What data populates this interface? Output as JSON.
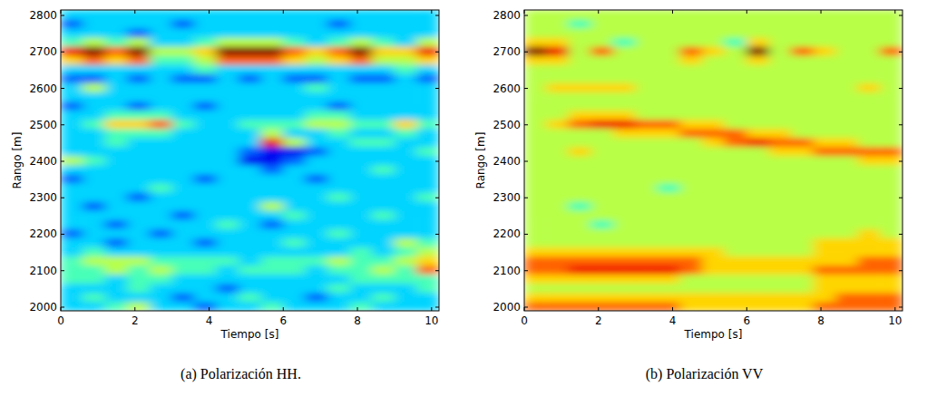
{
  "chart_data": [
    {
      "type": "heatmap",
      "caption": "(a) Polarización HH.",
      "xlabel": "Tiempo [s]",
      "ylabel": "Rango [m]",
      "xlim": [
        0,
        10.2
      ],
      "ylim": [
        1990,
        2815
      ],
      "xticks": [
        0,
        2,
        4,
        6,
        8,
        10
      ],
      "yticks": [
        2000,
        2100,
        2200,
        2300,
        2400,
        2500,
        2600,
        2700,
        2800
      ],
      "x_bins": [
        0,
        0.6,
        1.2,
        1.8,
        2.4,
        3,
        3.6,
        4.2,
        4.8,
        5.4,
        6,
        6.6,
        7.2,
        7.8,
        8.4,
        9,
        9.6,
        10.2
      ],
      "y_bins": [
        1990,
        2015,
        2040,
        2065,
        2090,
        2115,
        2140,
        2165,
        2190,
        2215,
        2240,
        2265,
        2290,
        2315,
        2340,
        2365,
        2390,
        2415,
        2440,
        2465,
        2490,
        2515,
        2540,
        2565,
        2590,
        2615,
        2640,
        2665,
        2690,
        2715,
        2740,
        2765,
        2790,
        2815
      ],
      "value_range": [
        0,
        9
      ],
      "cells": [
        [
          3,
          3,
          4,
          5,
          3,
          3,
          2,
          3,
          3,
          4,
          3,
          3,
          3,
          4,
          3,
          3,
          3
        ],
        [
          3,
          4,
          3,
          3,
          3,
          2,
          3,
          3,
          4,
          3,
          3,
          2,
          3,
          3,
          4,
          3,
          3
        ],
        [
          3,
          3,
          3,
          4,
          3,
          3,
          3,
          2,
          3,
          3,
          3,
          3,
          4,
          3,
          3,
          3,
          4
        ],
        [
          4,
          4,
          3,
          4,
          4,
          3,
          3,
          3,
          3,
          3,
          3,
          3,
          3,
          4,
          4,
          4,
          4
        ],
        [
          4,
          4,
          5,
          4,
          5,
          4,
          4,
          3,
          4,
          4,
          4,
          3,
          4,
          4,
          5,
          4,
          7
        ],
        [
          4,
          5,
          5,
          5,
          4,
          4,
          4,
          4,
          3,
          4,
          4,
          4,
          5,
          4,
          4,
          5,
          6
        ],
        [
          3,
          4,
          3,
          3,
          3,
          3,
          3,
          3,
          3,
          3,
          3,
          3,
          3,
          4,
          3,
          4,
          5
        ],
        [
          3,
          3,
          2,
          3,
          3,
          3,
          2,
          3,
          3,
          3,
          4,
          3,
          3,
          3,
          3,
          5,
          4
        ],
        [
          2,
          3,
          3,
          3,
          2,
          3,
          3,
          3,
          3,
          3,
          3,
          3,
          4,
          3,
          3,
          3,
          3
        ],
        [
          3,
          3,
          2,
          3,
          3,
          3,
          3,
          4,
          3,
          2,
          3,
          3,
          3,
          3,
          3,
          3,
          3
        ],
        [
          3,
          3,
          3,
          3,
          3,
          2,
          3,
          3,
          3,
          3,
          4,
          3,
          3,
          3,
          4,
          3,
          3
        ],
        [
          3,
          2,
          3,
          3,
          3,
          3,
          3,
          3,
          3,
          5,
          3,
          3,
          3,
          3,
          3,
          3,
          3
        ],
        [
          3,
          3,
          3,
          2,
          3,
          3,
          3,
          3,
          3,
          3,
          3,
          3,
          4,
          3,
          3,
          3,
          4
        ],
        [
          3,
          3,
          3,
          3,
          4,
          3,
          3,
          3,
          3,
          3,
          3,
          3,
          3,
          3,
          3,
          3,
          3
        ],
        [
          2,
          3,
          3,
          3,
          3,
          3,
          2,
          3,
          3,
          3,
          3,
          2,
          3,
          3,
          3,
          3,
          3
        ],
        [
          3,
          3,
          3,
          3,
          3,
          3,
          3,
          3,
          3,
          2,
          3,
          3,
          3,
          3,
          4,
          3,
          3
        ],
        [
          5,
          4,
          3,
          3,
          3,
          3,
          3,
          3,
          1,
          1,
          2,
          3,
          3,
          3,
          3,
          3,
          3
        ],
        [
          3,
          3,
          3,
          3,
          3,
          3,
          3,
          3,
          2,
          1,
          1,
          2,
          3,
          3,
          3,
          3,
          4
        ],
        [
          3,
          3,
          4,
          3,
          3,
          3,
          3,
          3,
          3,
          8,
          5,
          3,
          3,
          4,
          4,
          3,
          3
        ],
        [
          3,
          3,
          4,
          4,
          4,
          3,
          3,
          3,
          3,
          5,
          3,
          3,
          4,
          3,
          3,
          4,
          3
        ],
        [
          3,
          4,
          6,
          6,
          7,
          4,
          3,
          3,
          4,
          4,
          4,
          5,
          5,
          4,
          4,
          6,
          4
        ],
        [
          3,
          3,
          4,
          4,
          4,
          3,
          3,
          3,
          3,
          3,
          3,
          4,
          4,
          3,
          3,
          3,
          3
        ],
        [
          2,
          3,
          3,
          2,
          3,
          3,
          2,
          3,
          3,
          3,
          3,
          3,
          2,
          3,
          3,
          3,
          3
        ],
        [
          3,
          3,
          3,
          3,
          3,
          3,
          3,
          3,
          3,
          3,
          3,
          3,
          3,
          3,
          3,
          3,
          3
        ],
        [
          3,
          5,
          3,
          3,
          3,
          3,
          3,
          3,
          3,
          3,
          3,
          4,
          3,
          3,
          3,
          3,
          3
        ],
        [
          2,
          2,
          3,
          2,
          3,
          2,
          2,
          3,
          2,
          3,
          2,
          2,
          3,
          2,
          2,
          3,
          2
        ],
        [
          3,
          3,
          3,
          3,
          3,
          3,
          4,
          3,
          3,
          3,
          3,
          3,
          3,
          3,
          3,
          4,
          3
        ],
        [
          6,
          7,
          6,
          7,
          4,
          4,
          5,
          7,
          7,
          7,
          6,
          5,
          6,
          7,
          5,
          5,
          6
        ],
        [
          8,
          9,
          7,
          9,
          5,
          5,
          6,
          9,
          9,
          9,
          7,
          6,
          7,
          9,
          6,
          6,
          8
        ],
        [
          4,
          5,
          4,
          5,
          3,
          3,
          4,
          5,
          5,
          5,
          4,
          3,
          4,
          5,
          4,
          3,
          5
        ],
        [
          3,
          3,
          3,
          2,
          3,
          3,
          3,
          3,
          3,
          3,
          3,
          3,
          3,
          3,
          3,
          3,
          3
        ],
        [
          2,
          3,
          3,
          3,
          3,
          2,
          3,
          3,
          3,
          3,
          3,
          3,
          2,
          3,
          3,
          3,
          3
        ],
        [
          3,
          3,
          3,
          3,
          3,
          3,
          3,
          3,
          3,
          3,
          3,
          3,
          3,
          3,
          3,
          3,
          3
        ]
      ]
    },
    {
      "type": "heatmap",
      "caption": "(b) Polarización VV",
      "xlabel": "Tiempo [s]",
      "ylabel": "Rango [m]",
      "xlim": [
        0,
        10.2
      ],
      "ylim": [
        1990,
        2815
      ],
      "xticks": [
        0,
        2,
        4,
        6,
        8,
        10
      ],
      "yticks": [
        2000,
        2100,
        2200,
        2300,
        2400,
        2500,
        2600,
        2700,
        2800
      ],
      "x_bins": [
        0,
        0.6,
        1.2,
        1.8,
        2.4,
        3,
        3.6,
        4.2,
        4.8,
        5.4,
        6,
        6.6,
        7.2,
        7.8,
        8.4,
        9,
        9.6,
        10.2
      ],
      "y_bins": [
        1990,
        2015,
        2040,
        2065,
        2090,
        2115,
        2140,
        2165,
        2190,
        2215,
        2240,
        2265,
        2290,
        2315,
        2340,
        2365,
        2390,
        2415,
        2440,
        2465,
        2490,
        2515,
        2540,
        2565,
        2590,
        2615,
        2640,
        2665,
        2690,
        2715,
        2740,
        2765,
        2790,
        2815
      ],
      "value_range": [
        0,
        9
      ],
      "cells": [
        [
          7,
          7,
          7,
          7,
          7,
          7,
          7,
          6,
          6,
          6,
          6,
          6,
          6,
          7,
          7,
          7,
          7
        ],
        [
          6,
          6,
          6,
          6,
          6,
          6,
          6,
          6,
          6,
          6,
          6,
          6,
          6,
          6,
          7,
          7,
          7
        ],
        [
          5,
          5,
          5,
          5,
          5,
          5,
          5,
          5,
          5,
          5,
          5,
          5,
          5,
          6,
          6,
          6,
          6
        ],
        [
          6,
          6,
          6,
          6,
          6,
          6,
          6,
          5,
          5,
          5,
          5,
          5,
          5,
          6,
          6,
          6,
          6
        ],
        [
          7,
          7,
          8,
          8,
          8,
          8,
          8,
          7,
          6,
          6,
          6,
          6,
          6,
          7,
          7,
          7,
          7
        ],
        [
          7,
          7,
          7,
          7,
          7,
          7,
          7,
          7,
          6,
          6,
          6,
          6,
          6,
          6,
          6,
          7,
          7
        ],
        [
          6,
          6,
          6,
          6,
          6,
          6,
          6,
          6,
          6,
          5,
          5,
          5,
          5,
          6,
          6,
          6,
          6
        ],
        [
          5,
          5,
          5,
          5,
          5,
          5,
          5,
          5,
          5,
          5,
          5,
          5,
          5,
          6,
          6,
          6,
          6
        ],
        [
          5,
          5,
          5,
          5,
          5,
          5,
          5,
          5,
          5,
          5,
          5,
          5,
          5,
          5,
          5,
          6,
          5
        ],
        [
          5,
          5,
          5,
          4,
          5,
          5,
          5,
          5,
          5,
          5,
          5,
          5,
          5,
          5,
          5,
          5,
          5
        ],
        [
          5,
          5,
          5,
          5,
          5,
          5,
          5,
          5,
          5,
          5,
          5,
          5,
          5,
          5,
          5,
          5,
          5
        ],
        [
          5,
          5,
          4,
          5,
          5,
          5,
          5,
          5,
          5,
          5,
          5,
          5,
          5,
          5,
          5,
          5,
          5
        ],
        [
          5,
          5,
          5,
          5,
          5,
          5,
          5,
          5,
          5,
          5,
          5,
          5,
          5,
          5,
          5,
          5,
          5
        ],
        [
          5,
          5,
          5,
          5,
          5,
          5,
          4,
          5,
          5,
          5,
          5,
          5,
          5,
          5,
          5,
          5,
          5
        ],
        [
          5,
          5,
          5,
          5,
          5,
          5,
          5,
          5,
          5,
          5,
          5,
          5,
          5,
          5,
          5,
          5,
          5
        ],
        [
          5,
          5,
          5,
          5,
          5,
          5,
          5,
          5,
          5,
          5,
          5,
          5,
          5,
          5,
          5,
          5,
          5
        ],
        [
          5,
          5,
          5,
          5,
          5,
          5,
          5,
          5,
          5,
          5,
          5,
          5,
          5,
          5,
          5,
          6,
          6
        ],
        [
          5,
          5,
          6,
          5,
          5,
          5,
          5,
          5,
          5,
          5,
          5,
          6,
          6,
          7,
          7,
          7,
          7
        ],
        [
          5,
          5,
          5,
          5,
          5,
          5,
          5,
          5,
          6,
          7,
          8,
          7,
          7,
          6,
          6,
          5,
          5
        ],
        [
          5,
          5,
          5,
          5,
          6,
          6,
          6,
          7,
          7,
          7,
          6,
          6,
          5,
          5,
          5,
          5,
          5
        ],
        [
          5,
          6,
          7,
          8,
          8,
          7,
          7,
          6,
          6,
          5,
          5,
          5,
          5,
          5,
          5,
          5,
          5
        ],
        [
          5,
          5,
          6,
          6,
          6,
          5,
          5,
          5,
          5,
          5,
          5,
          5,
          5,
          5,
          5,
          5,
          5
        ],
        [
          5,
          5,
          5,
          5,
          5,
          5,
          5,
          5,
          5,
          5,
          5,
          5,
          5,
          5,
          5,
          5,
          5
        ],
        [
          5,
          5,
          5,
          5,
          5,
          5,
          5,
          5,
          5,
          5,
          5,
          5,
          5,
          5,
          5,
          5,
          5
        ],
        [
          5,
          6,
          6,
          6,
          6,
          5,
          5,
          5,
          5,
          5,
          5,
          5,
          5,
          5,
          5,
          6,
          5
        ],
        [
          5,
          5,
          5,
          5,
          5,
          5,
          5,
          5,
          5,
          5,
          5,
          5,
          5,
          5,
          5,
          5,
          5
        ],
        [
          5,
          5,
          5,
          5,
          5,
          5,
          5,
          5,
          5,
          5,
          5,
          5,
          5,
          5,
          5,
          5,
          5
        ],
        [
          6,
          6,
          5,
          5,
          5,
          5,
          5,
          6,
          5,
          5,
          6,
          5,
          5,
          5,
          5,
          5,
          5
        ],
        [
          9,
          8,
          5,
          7,
          5,
          5,
          5,
          7,
          6,
          5,
          9,
          5,
          7,
          6,
          5,
          5,
          7
        ],
        [
          6,
          6,
          5,
          5,
          4,
          5,
          5,
          5,
          5,
          4,
          6,
          5,
          5,
          5,
          5,
          5,
          5
        ],
        [
          5,
          5,
          5,
          5,
          5,
          5,
          5,
          5,
          5,
          5,
          5,
          5,
          5,
          5,
          5,
          5,
          5
        ],
        [
          5,
          5,
          4,
          5,
          5,
          5,
          5,
          5,
          5,
          5,
          5,
          5,
          5,
          5,
          5,
          5,
          5
        ],
        [
          5,
          5,
          5,
          5,
          5,
          5,
          5,
          5,
          5,
          5,
          5,
          5,
          5,
          5,
          5,
          5,
          5
        ]
      ]
    }
  ]
}
